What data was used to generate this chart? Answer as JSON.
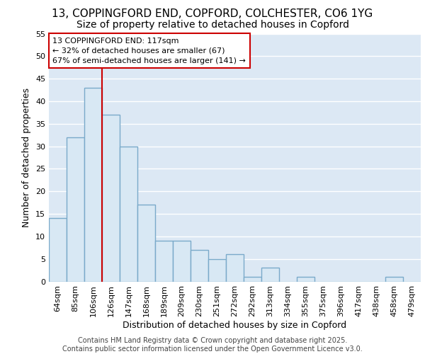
{
  "title_line1": "13, COPPINGFORD END, COPFORD, COLCHESTER, CO6 1YG",
  "title_line2": "Size of property relative to detached houses in Copford",
  "xlabel": "Distribution of detached houses by size in Copford",
  "ylabel": "Number of detached properties",
  "categories": [
    "64sqm",
    "85sqm",
    "106sqm",
    "126sqm",
    "147sqm",
    "168sqm",
    "189sqm",
    "209sqm",
    "230sqm",
    "251sqm",
    "272sqm",
    "292sqm",
    "313sqm",
    "334sqm",
    "355sqm",
    "375sqm",
    "396sqm",
    "417sqm",
    "438sqm",
    "458sqm",
    "479sqm"
  ],
  "values": [
    14,
    32,
    43,
    37,
    30,
    17,
    9,
    9,
    7,
    5,
    6,
    1,
    3,
    0,
    1,
    0,
    0,
    0,
    0,
    1,
    0
  ],
  "bar_color": "#d8e8f4",
  "bar_edge_color": "#7aaaca",
  "bar_edge_width": 1.0,
  "vline_x_index": 2,
  "vline_color": "#cc0000",
  "annotation_text": "13 COPPINGFORD END: 117sqm\n← 32% of detached houses are smaller (67)\n67% of semi-detached houses are larger (141) →",
  "annotation_box_color": "#ffffff",
  "annotation_box_edge_color": "#cc0000",
  "ylim": [
    0,
    55
  ],
  "yticks": [
    0,
    5,
    10,
    15,
    20,
    25,
    30,
    35,
    40,
    45,
    50,
    55
  ],
  "background_color": "#dce8f4",
  "grid_color": "#ffffff",
  "footer_text": "Contains HM Land Registry data © Crown copyright and database right 2025.\nContains public sector information licensed under the Open Government Licence v3.0.",
  "title_fontsize": 11,
  "subtitle_fontsize": 10,
  "axis_label_fontsize": 9,
  "tick_fontsize": 8,
  "annotation_fontsize": 8,
  "footer_fontsize": 7
}
